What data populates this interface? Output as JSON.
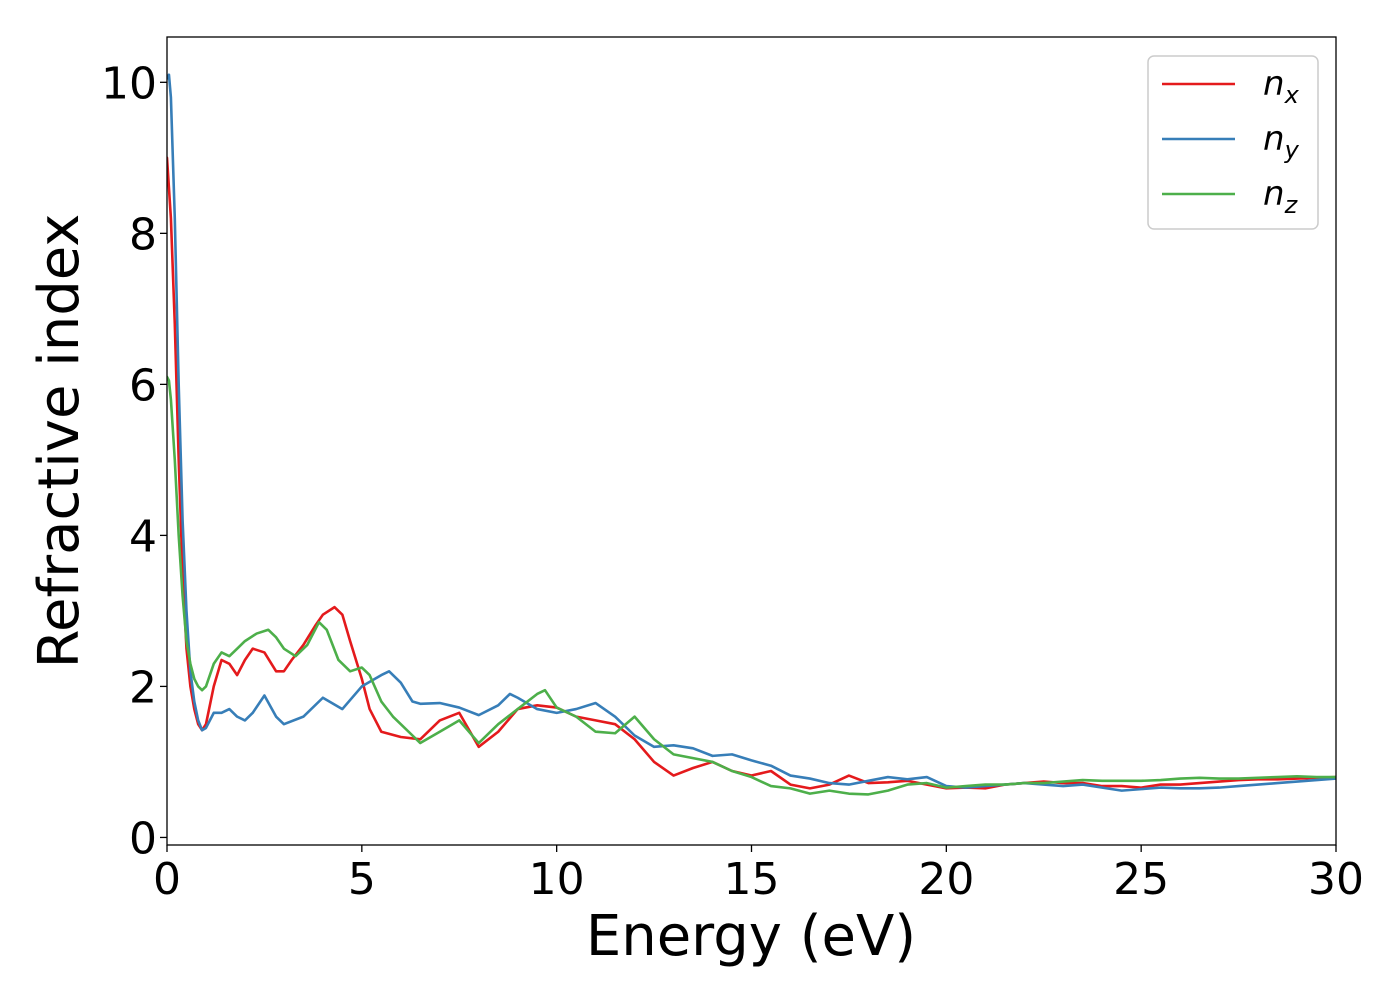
{
  "chart_data": {
    "type": "line",
    "title": "",
    "xlabel": "Energy (eV)",
    "ylabel": "Refractive index",
    "xlim": [
      0,
      30
    ],
    "ylim": [
      -0.1,
      10.6
    ],
    "xticks": [
      0,
      5,
      10,
      15,
      20,
      25,
      30
    ],
    "yticks": [
      0,
      2,
      4,
      6,
      8,
      10
    ],
    "grid": false,
    "legend_position": "top-right",
    "series": [
      {
        "name": "n",
        "subscript": "x",
        "color": "#e41a1c",
        "x": [
          0,
          0.1,
          0.2,
          0.3,
          0.4,
          0.5,
          0.6,
          0.7,
          0.8,
          0.9,
          1.0,
          1.2,
          1.4,
          1.6,
          1.8,
          2.0,
          2.2,
          2.5,
          2.8,
          3.0,
          3.2,
          3.5,
          3.8,
          4.0,
          4.3,
          4.5,
          4.7,
          5.0,
          5.2,
          5.5,
          6.0,
          6.5,
          7.0,
          7.5,
          8.0,
          8.5,
          9.0,
          9.5,
          10.0,
          10.5,
          11.0,
          11.5,
          12.0,
          12.5,
          13.0,
          13.5,
          14.0,
          14.5,
          15.0,
          15.5,
          16.0,
          16.5,
          17.0,
          17.5,
          18.0,
          18.5,
          19.0,
          19.5,
          20.0,
          20.5,
          21.0,
          21.5,
          22.0,
          22.5,
          23.0,
          23.5,
          24.0,
          24.5,
          25.0,
          25.5,
          26.0,
          26.5,
          27.0,
          27.5,
          28.0,
          28.5,
          29.0,
          29.5,
          30.0
        ],
        "y": [
          9.0,
          8.2,
          6.8,
          5.0,
          3.5,
          2.5,
          2.0,
          1.7,
          1.5,
          1.42,
          1.5,
          2.0,
          2.35,
          2.3,
          2.15,
          2.35,
          2.5,
          2.45,
          2.2,
          2.2,
          2.35,
          2.55,
          2.8,
          2.95,
          3.05,
          2.95,
          2.6,
          2.1,
          1.7,
          1.4,
          1.33,
          1.3,
          1.55,
          1.65,
          1.2,
          1.4,
          1.7,
          1.75,
          1.72,
          1.6,
          1.55,
          1.5,
          1.3,
          1.0,
          0.82,
          0.92,
          1.0,
          0.88,
          0.82,
          0.88,
          0.7,
          0.65,
          0.7,
          0.82,
          0.72,
          0.73,
          0.75,
          0.7,
          0.65,
          0.66,
          0.65,
          0.7,
          0.72,
          0.74,
          0.72,
          0.72,
          0.68,
          0.68,
          0.66,
          0.7,
          0.7,
          0.72,
          0.74,
          0.76,
          0.77,
          0.77,
          0.78,
          0.79,
          0.8
        ]
      },
      {
        "name": "n",
        "subscript": "y",
        "color": "#377eb8",
        "x": [
          0,
          0.05,
          0.1,
          0.2,
          0.3,
          0.4,
          0.5,
          0.6,
          0.7,
          0.8,
          0.9,
          1.0,
          1.2,
          1.4,
          1.6,
          1.8,
          2.0,
          2.2,
          2.5,
          2.8,
          3.0,
          3.5,
          4.0,
          4.5,
          5.0,
          5.5,
          5.7,
          6.0,
          6.3,
          6.5,
          7.0,
          7.5,
          8.0,
          8.5,
          8.8,
          9.0,
          9.5,
          10.0,
          10.5,
          11.0,
          11.5,
          12.0,
          12.5,
          13.0,
          13.5,
          14.0,
          14.5,
          15.0,
          15.5,
          16.0,
          16.5,
          17.0,
          17.5,
          18.0,
          18.5,
          19.0,
          19.5,
          20.0,
          20.5,
          21.0,
          21.5,
          22.0,
          22.5,
          23.0,
          23.5,
          24.0,
          24.5,
          25.0,
          25.5,
          26.0,
          26.5,
          27.0,
          27.5,
          28.0,
          28.5,
          29.0,
          29.5,
          30.0
        ],
        "y": [
          10.05,
          10.1,
          9.8,
          8.2,
          6.0,
          4.2,
          3.0,
          2.2,
          1.8,
          1.55,
          1.42,
          1.45,
          1.65,
          1.65,
          1.7,
          1.6,
          1.55,
          1.65,
          1.88,
          1.6,
          1.5,
          1.6,
          1.85,
          1.7,
          2.0,
          2.15,
          2.2,
          2.05,
          1.8,
          1.77,
          1.78,
          1.72,
          1.62,
          1.75,
          1.9,
          1.85,
          1.7,
          1.65,
          1.7,
          1.78,
          1.6,
          1.35,
          1.2,
          1.22,
          1.18,
          1.08,
          1.1,
          1.02,
          0.95,
          0.82,
          0.78,
          0.72,
          0.7,
          0.75,
          0.8,
          0.77,
          0.8,
          0.68,
          0.66,
          0.68,
          0.7,
          0.72,
          0.7,
          0.68,
          0.7,
          0.66,
          0.62,
          0.64,
          0.66,
          0.65,
          0.65,
          0.66,
          0.68,
          0.7,
          0.72,
          0.74,
          0.76,
          0.78
        ]
      },
      {
        "name": "n",
        "subscript": "z",
        "color": "#4daf4a",
        "x": [
          0,
          0.05,
          0.1,
          0.2,
          0.3,
          0.4,
          0.5,
          0.6,
          0.7,
          0.8,
          0.9,
          1.0,
          1.2,
          1.4,
          1.6,
          1.8,
          2.0,
          2.3,
          2.6,
          2.8,
          3.0,
          3.3,
          3.6,
          3.9,
          4.1,
          4.4,
          4.7,
          5.0,
          5.2,
          5.5,
          5.8,
          6.0,
          6.3,
          6.5,
          7.0,
          7.5,
          8.0,
          8.5,
          9.0,
          9.5,
          9.7,
          10.0,
          10.5,
          11.0,
          11.5,
          12.0,
          12.5,
          13.0,
          13.5,
          14.0,
          14.5,
          15.0,
          15.5,
          16.0,
          16.5,
          17.0,
          17.5,
          18.0,
          18.5,
          19.0,
          19.5,
          20.0,
          20.5,
          21.0,
          21.5,
          22.0,
          22.5,
          23.0,
          23.5,
          24.0,
          24.5,
          25.0,
          25.5,
          26.0,
          26.5,
          27.0,
          27.5,
          28.0,
          28.5,
          29.0,
          29.5,
          30.0
        ],
        "y": [
          6.1,
          6.05,
          5.8,
          5.0,
          4.0,
          3.2,
          2.6,
          2.3,
          2.1,
          2.0,
          1.95,
          2.0,
          2.3,
          2.45,
          2.4,
          2.5,
          2.6,
          2.7,
          2.75,
          2.65,
          2.5,
          2.4,
          2.55,
          2.85,
          2.75,
          2.35,
          2.2,
          2.25,
          2.15,
          1.8,
          1.6,
          1.5,
          1.35,
          1.25,
          1.4,
          1.55,
          1.25,
          1.5,
          1.7,
          1.9,
          1.95,
          1.72,
          1.6,
          1.4,
          1.38,
          1.6,
          1.3,
          1.1,
          1.05,
          1.0,
          0.88,
          0.8,
          0.68,
          0.65,
          0.58,
          0.62,
          0.58,
          0.57,
          0.62,
          0.7,
          0.72,
          0.66,
          0.68,
          0.7,
          0.7,
          0.72,
          0.72,
          0.74,
          0.76,
          0.75,
          0.75,
          0.75,
          0.76,
          0.78,
          0.79,
          0.78,
          0.78,
          0.79,
          0.8,
          0.81,
          0.8,
          0.8
        ]
      }
    ]
  }
}
